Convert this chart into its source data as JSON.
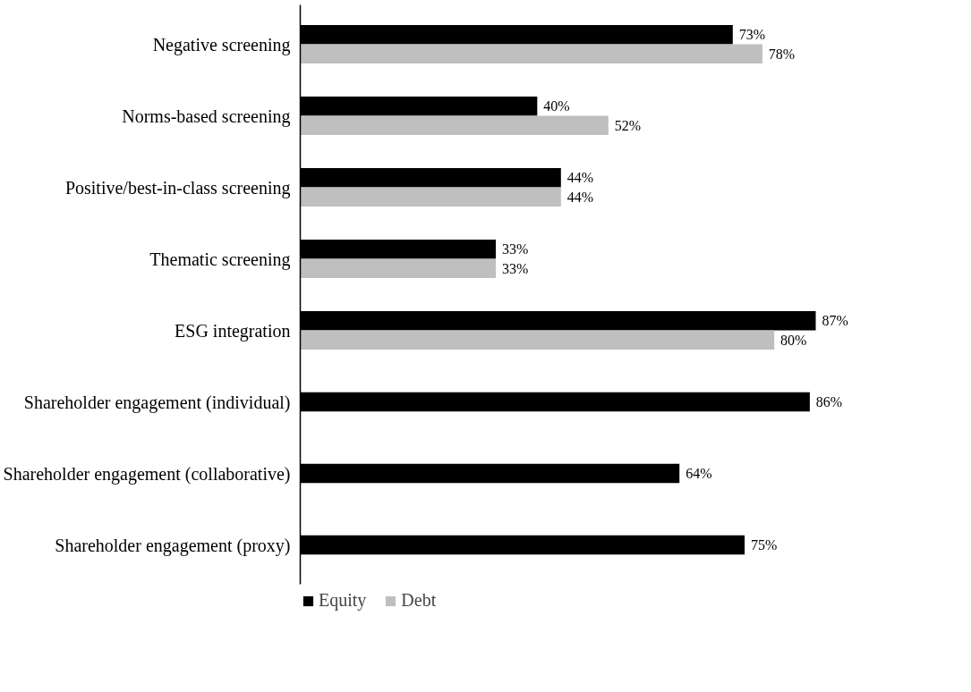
{
  "chart_data": {
    "type": "bar",
    "orientation": "horizontal",
    "legend": "bottom",
    "grid": false,
    "tick_labels": "y",
    "categories": [
      "Negative screening",
      "Norms-based screening",
      "Positive/best-in-class screening",
      "Thematic screening",
      "ESG integration",
      "Shareholder engagement (individual)",
      "Shareholder engagement (collaborative)",
      "Shareholder engagement (proxy)"
    ],
    "series": [
      {
        "name": "Equity",
        "color": "#000000",
        "values": [
          73,
          40,
          44,
          33,
          87,
          86,
          64,
          75
        ],
        "value_labels": [
          "73%",
          "40%",
          "44%",
          "33%",
          "87%",
          "86%",
          "64%",
          "75%"
        ]
      },
      {
        "name": "Debt",
        "color": "#bfbfbf",
        "values": [
          78,
          52,
          44,
          33,
          80,
          null,
          null,
          null
        ],
        "value_labels": [
          "78%",
          "52%",
          "44%",
          "33%",
          "80%",
          null,
          null,
          null
        ]
      }
    ]
  }
}
